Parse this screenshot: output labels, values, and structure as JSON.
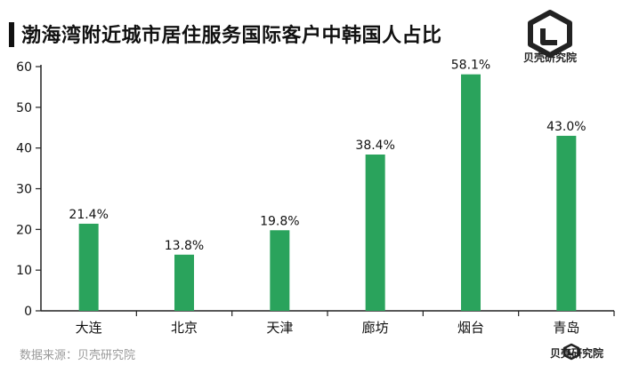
{
  "header": {
    "title": "渤海湾附近城市居住服务国际客户中韩国人占比",
    "brand": "贝壳研究院"
  },
  "footer": {
    "source": "数据来源：贝壳研究院",
    "brand": "贝壳研究院"
  },
  "colors": {
    "bar": "#2aa35c",
    "axis": "#222222",
    "text": "#111111"
  },
  "chart_data": {
    "type": "bar",
    "title": "渤海湾附近城市居住服务国际客户中韩国人占比",
    "categories": [
      "大连",
      "北京",
      "天津",
      "廊坊",
      "烟台",
      "青岛"
    ],
    "values": [
      21.4,
      13.8,
      19.8,
      38.4,
      58.1,
      43.0
    ],
    "data_labels": [
      "21.4%",
      "13.8%",
      "19.8%",
      "38.4%",
      "58.1%",
      "43.0%"
    ],
    "yticks": [
      0,
      10,
      20,
      30,
      40,
      50,
      60
    ],
    "ylim": [
      0,
      60
    ],
    "grid": false,
    "legend": "none"
  }
}
